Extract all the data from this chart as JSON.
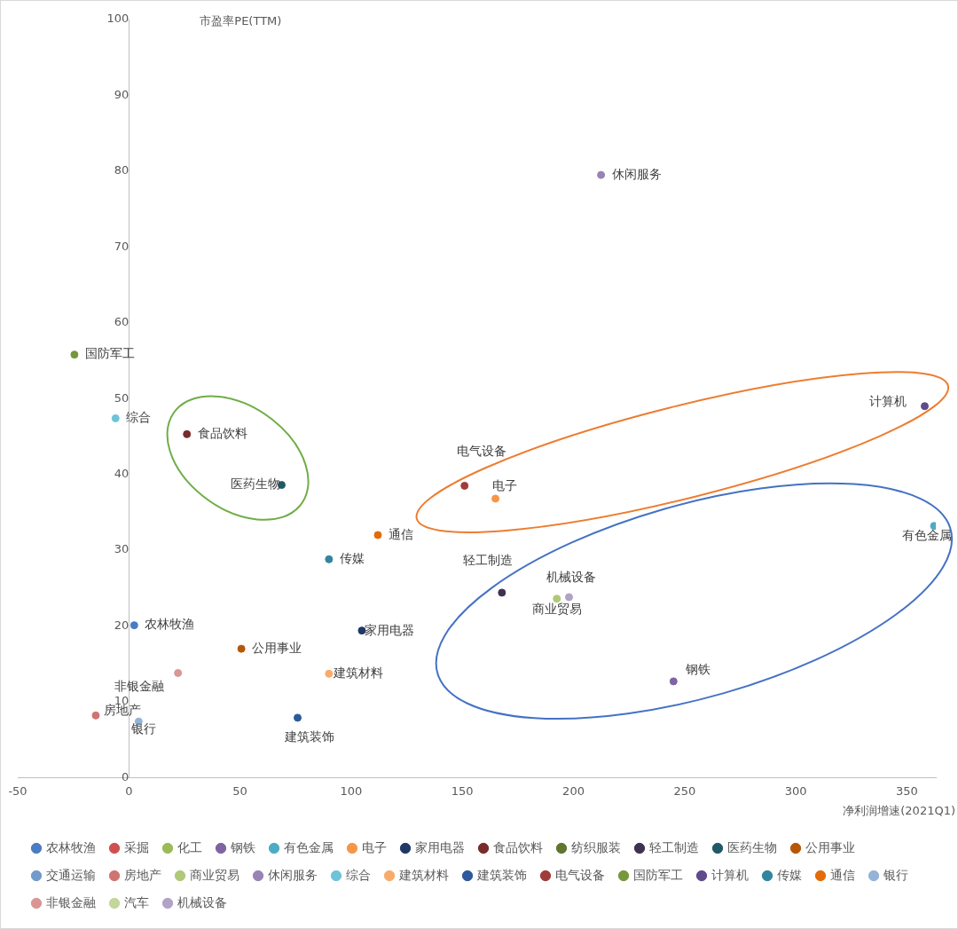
{
  "chart_data": {
    "type": "scatter",
    "xlabel": "净利润增速(2021Q1)",
    "ylabel": "市盈率PE(TTM)",
    "xlim": [
      -50,
      363
    ],
    "ylim": [
      0,
      100
    ],
    "xticks": [
      -50,
      0,
      50,
      100,
      150,
      200,
      250,
      300,
      350
    ],
    "yticks": [
      0,
      10,
      20,
      30,
      40,
      50,
      60,
      70,
      80,
      90,
      100
    ],
    "grid": false,
    "legend": "bottom",
    "marker": "circle",
    "series": [
      {
        "name": "农林牧渔",
        "color": "#4a7cc4",
        "x": [
          2.4
        ],
        "values": [
          20.1
        ]
      },
      {
        "name": "采掘",
        "color": "#d0504f"
      },
      {
        "name": "化工",
        "color": "#9bbb59"
      },
      {
        "name": "钢铁",
        "color": "#8064a2",
        "x": [
          245
        ],
        "values": [
          12.7
        ]
      },
      {
        "name": "有色金属",
        "color": "#4bacc6",
        "x": [
          362.2
        ],
        "values": [
          33.2
        ]
      },
      {
        "name": "电子",
        "color": "#f79646",
        "x": [
          164.9
        ],
        "values": [
          36.8
        ]
      },
      {
        "name": "家用电器",
        "color": "#1f3864",
        "x": [
          104.8
        ],
        "values": [
          19.4
        ]
      },
      {
        "name": "食品饮料",
        "color": "#772c2a",
        "x": [
          26.1
        ],
        "values": [
          45.3
        ]
      },
      {
        "name": "纺织服装",
        "color": "#5f7530"
      },
      {
        "name": "轻工制造",
        "color": "#3f3151",
        "x": [
          167.8
        ],
        "values": [
          24.4
        ]
      },
      {
        "name": "医药生物",
        "color": "#215968",
        "x": [
          68.7
        ],
        "values": [
          38.6
        ]
      },
      {
        "name": "公用事业",
        "color": "#b65708",
        "x": [
          50.6
        ],
        "values": [
          17.0
        ]
      },
      {
        "name": "交通运输",
        "color": "#729aca"
      },
      {
        "name": "房地产",
        "color": "#d07472",
        "x": [
          -14.9
        ],
        "values": [
          8.2
        ]
      },
      {
        "name": "商业贸易",
        "color": "#afc97a",
        "x": [
          192.5
        ],
        "values": [
          23.6
        ]
      },
      {
        "name": "休闲服务",
        "color": "#9983b5",
        "x": [
          212.4
        ],
        "values": [
          79.5
        ]
      },
      {
        "name": "综合",
        "color": "#6fc3d9",
        "x": [
          -6.0
        ],
        "values": [
          47.4
        ]
      },
      {
        "name": "建筑材料",
        "color": "#f9ab6b",
        "x": [
          90
        ],
        "values": [
          13.7
        ]
      },
      {
        "name": "建筑装饰",
        "color": "#2c5a9c",
        "x": [
          75.9
        ],
        "values": [
          7.9
        ]
      },
      {
        "name": "电气设备",
        "color": "#a13c3a",
        "x": [
          151
        ],
        "values": [
          38.5
        ]
      },
      {
        "name": "国防军工",
        "color": "#77973c",
        "x": [
          -24.5
        ],
        "values": [
          55.8
        ]
      },
      {
        "name": "计算机",
        "color": "#5f4b8b",
        "x": [
          358
        ],
        "values": [
          49.0
        ]
      },
      {
        "name": "传媒",
        "color": "#31859c",
        "x": [
          90
        ],
        "values": [
          28.8
        ]
      },
      {
        "name": "通信",
        "color": "#e36c09",
        "x": [
          112
        ],
        "values": [
          32.0
        ]
      },
      {
        "name": "银行",
        "color": "#95b3d7",
        "x": [
          4.4
        ],
        "values": [
          7.4
        ]
      },
      {
        "name": "非银金融",
        "color": "#d99694",
        "x": [
          22.1
        ],
        "values": [
          13.8
        ]
      },
      {
        "name": "汽车",
        "color": "#c3d69b"
      },
      {
        "name": "机械设备",
        "color": "#b3a2c7",
        "x": [
          198
        ],
        "values": [
          23.8
        ]
      }
    ]
  }
}
